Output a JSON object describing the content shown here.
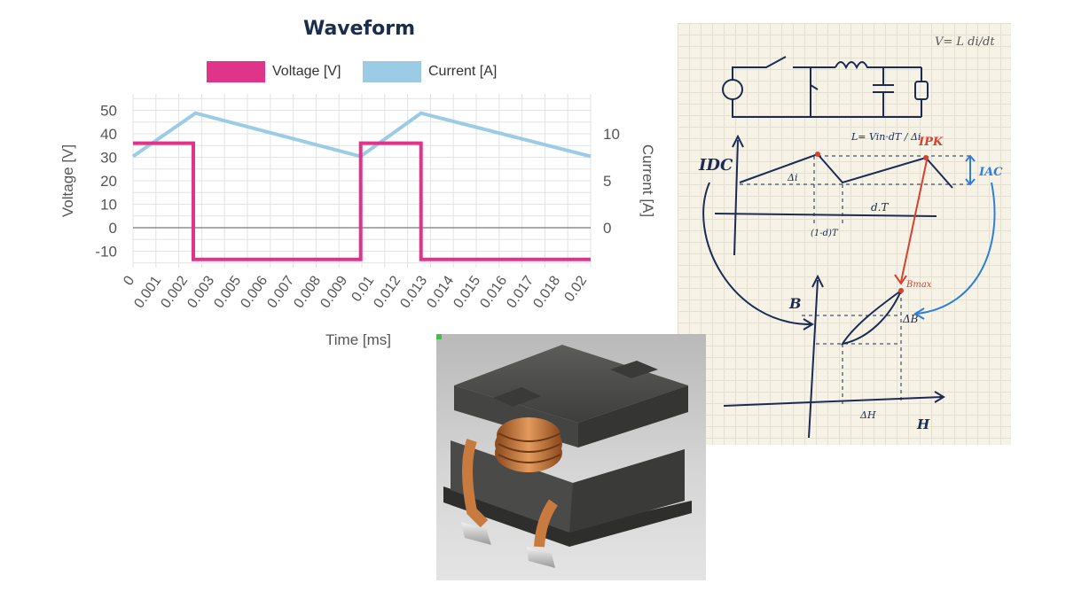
{
  "chart_data": {
    "type": "line",
    "title": "Waveform",
    "xlabel": "Time [ms]",
    "ylabel_left": "Voltage [V]",
    "ylabel_right": "Current [A]",
    "x_ticks": [
      "0",
      "0.001",
      "0.002",
      "0.003",
      "0.005",
      "0.006",
      "0.007",
      "0.008",
      "0.009",
      "0.01",
      "0.012",
      "0.013",
      "0.014",
      "0.015",
      "0.016",
      "0.017",
      "0.018",
      "0.02"
    ],
    "y_left_ticks": [
      "50",
      "40",
      "30",
      "20",
      "10",
      "0",
      "-10"
    ],
    "y_right_ticks": [
      "10",
      "5",
      "0"
    ],
    "xlim": [
      0,
      0.0205
    ],
    "ylim_left": [
      -17,
      57
    ],
    "grid": true,
    "legend_position": "top-center",
    "series": [
      {
        "name": "Voltage [V]",
        "axis": "left",
        "color": "#e0338a",
        "x": [
          0,
          0.0027,
          0.0027,
          0.0102,
          0.0102,
          0.0129,
          0.0129,
          0.0205
        ],
        "y": [
          36,
          36,
          -13.5,
          -13.5,
          36,
          36,
          -13.5,
          -13.5
        ]
      },
      {
        "name": "Current [A]",
        "axis": "right",
        "color": "#9ccbe5",
        "x": [
          0,
          0.0028,
          0.0102,
          0.0129,
          0.0205
        ],
        "y": [
          7.6,
          12.2,
          7.6,
          12.2,
          7.6
        ]
      }
    ]
  },
  "notes": {
    "formula_top": "V= L di/dt",
    "formula_L": "L= Vin·dT / Δi",
    "label_idc": "IDC",
    "label_ipk": "IPK",
    "label_iac": "IAC",
    "label_delta_i": "Δi",
    "label_dt": "d.T",
    "label_1minusd": "(1-d)T",
    "label_b": "B",
    "label_bmax": "Bmax",
    "label_delta_b": "ΔB",
    "label_delta_h": "ΔH",
    "label_h": "H",
    "ink_color": "#1c2a55",
    "red_color": "#d8412f",
    "blue_color": "#2e7fd8"
  },
  "photo": {
    "subject": "SMD power inductor",
    "coil_color": "#c97a3f",
    "core_color": "#4a4a48"
  }
}
